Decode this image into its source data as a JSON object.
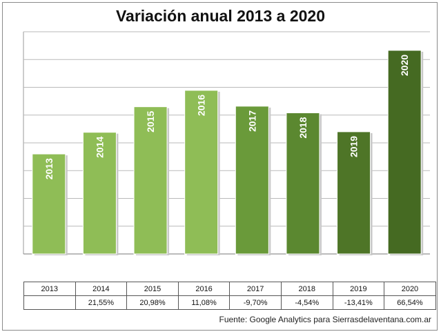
{
  "chart_data": {
    "type": "bar",
    "title": "Variación anual 2013 a 2020",
    "categories": [
      "2013",
      "2014",
      "2015",
      "2016",
      "2017",
      "2018",
      "2019",
      "2020"
    ],
    "values": [
      3.6,
      4.38,
      5.3,
      5.89,
      5.32,
      5.08,
      4.4,
      7.33
    ],
    "bar_labels": [
      "2013",
      "2014",
      "2015",
      "2016",
      "2017",
      "2018",
      "2019",
      "2020"
    ],
    "bar_colors": [
      "#8fbd56",
      "#8fbd56",
      "#8fbd56",
      "#8fbd56",
      "#6a9a3a",
      "#5b8830",
      "#4e7527",
      "#456a22"
    ],
    "table": {
      "header": [
        "2013",
        "2014",
        "2015",
        "2016",
        "2017",
        "2018",
        "2019",
        "2020"
      ],
      "variation": [
        "",
        "21,55%",
        "20,98%",
        "11,08%",
        "-9,70%",
        "-4,54%",
        "-13,41%",
        "66,54%"
      ]
    },
    "ylim": [
      0,
      8
    ],
    "grid": true,
    "xlabel": "",
    "ylabel": "",
    "source": "Fuente: Google Analytics para Sierrasdelaventana.com.ar"
  }
}
